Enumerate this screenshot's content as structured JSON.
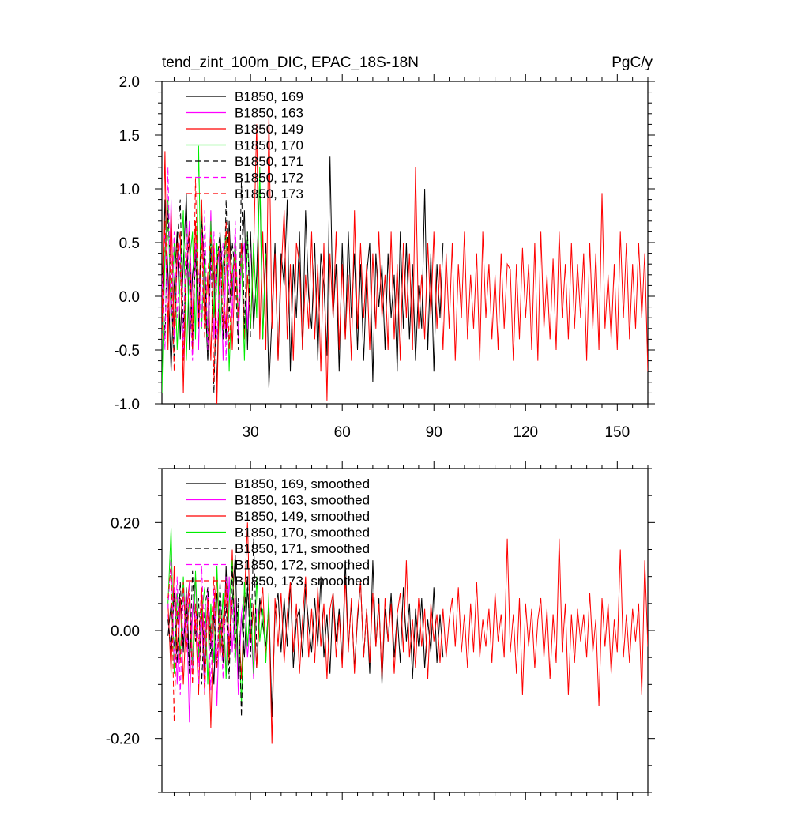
{
  "chart_data": [
    {
      "type": "line",
      "title": "tend_zint_100m_DIC, EPAC_18S-18N",
      "units": "PgC/y",
      "xlim": [
        1,
        160
      ],
      "ylim": [
        -1.0,
        2.0
      ],
      "xticks": [
        30,
        60,
        90,
        120,
        150
      ],
      "yticks": [
        -1.0,
        -0.5,
        0.0,
        0.5,
        1.0,
        1.5,
        2.0
      ],
      "ytick_labels": [
        "-1.0",
        "-0.5",
        "0.0",
        "0.5",
        "1.0",
        "1.5",
        "2.0"
      ],
      "legend_position": "top-left",
      "series": [
        {
          "name": "B1850, 169",
          "color": "#000000",
          "dash": "solid",
          "x_start": 1,
          "values": [
            -0.3,
            0.9,
            0.2,
            -0.7,
            0.1,
            0.6,
            -0.4,
            0.3,
            0.95,
            -0.5,
            0.2,
            0.5,
            -0.3,
            0.8,
            0.1,
            -0.6,
            0.4,
            0.2,
            -0.9,
            0.6,
            0.1,
            -0.4,
            0.7,
            0.0,
            0.5,
            -0.2,
            0.3,
            0.8,
            -0.5,
            0.6,
            -0.3,
            0.2,
            1.1,
            -0.4,
            0.5,
            -0.85,
            -0.2,
            0.5,
            -0.6,
            0.4,
            0.1,
            0.9,
            -0.7,
            0.3,
            -0.2,
            0.6,
            -0.5,
            0.8,
            0.0,
            -0.3,
            0.5,
            -0.6,
            0.4,
            0.1,
            -0.55,
            1.3,
            -0.2,
            0.3,
            -0.7,
            0.5,
            -0.4,
            0.6,
            -0.2,
            0.4,
            -0.5,
            0.3,
            -0.6,
            0.2,
            0.5,
            -0.8,
            0.4,
            -0.1,
            0.3,
            -0.5,
            0.4,
            -0.2,
            0.2,
            -0.7,
            0.6,
            -0.3,
            0.5,
            -0.4,
            0.3,
            -0.6,
            0.1,
            -0.3,
            1.0,
            -0.5,
            0.4,
            -0.7,
            0.3,
            -0.2,
            0.5
          ]
        },
        {
          "name": "B1850, 163",
          "color": "#ff00ff",
          "dash": "solid",
          "x_start": 1,
          "values": [
            0.1,
            0.6,
            -0.3,
            0.9,
            -0.4,
            0.3,
            0.5,
            -0.6,
            0.2,
            0.7,
            -0.2,
            0.4,
            -0.5,
            0.6,
            0.1,
            -0.3,
            0.8,
            -0.4,
            0.2,
            0.5,
            -0.6,
            0.3,
            0.1,
            -0.2,
            0.6,
            -0.4,
            0.3,
            0.5,
            -0.3,
            0.4
          ]
        },
        {
          "name": "B1850, 149",
          "color": "#ff0000",
          "dash": "solid",
          "x_start": 1,
          "values": [
            -0.2,
            1.35,
            -0.5,
            0.8,
            -0.3,
            0.4,
            0.6,
            -0.9,
            0.3,
            0.5,
            -0.4,
            0.7,
            -0.2,
            0.9,
            -0.3,
            0.2,
            -0.6,
            0.5,
            -1.0,
            0.4,
            0.1,
            -0.3,
            0.6,
            -0.5,
            0.3,
            -0.2,
            0.5,
            -0.4,
            0.2,
            -0.3,
            0.4,
            1.6,
            -0.4,
            0.6,
            -0.5,
            1.7,
            -0.3,
            0.4,
            -0.6,
            0.2,
            0.8,
            -0.4,
            0.3,
            -0.6,
            0.5,
            0.3,
            -0.5,
            0.2,
            -0.3,
            0.6,
            -0.4,
            0.3,
            -0.7,
            0.5,
            -0.97,
            0.4,
            -0.2,
            0.6,
            -0.5,
            0.3,
            -0.4,
            0.2,
            -0.6,
            0.8,
            -0.3,
            0.5,
            -0.2,
            0.3,
            -0.5,
            0.4,
            -0.3,
            0.6,
            -0.2,
            0.2,
            -0.5,
            0.6,
            -0.4,
            0.3,
            -0.6,
            0.5,
            -0.2,
            0.4,
            -0.5,
            1.2,
            -0.3,
            0.2,
            -0.4,
            0.5,
            -0.2,
            0.6,
            -0.3,
            0.3,
            -0.5,
            0.4,
            -0.3,
            0.5,
            -0.6,
            0.3,
            -0.2,
            0.6,
            -0.4,
            0.2,
            -0.3,
            0.4,
            -0.6,
            0.6,
            -0.2,
            0.3,
            -0.4,
            0.2,
            -0.5,
            0.4,
            -0.3,
            0.3,
            0.25,
            -0.6,
            0.3,
            -0.4,
            0.45,
            -0.2,
            0.3,
            -0.5,
            0.5,
            -0.6,
            0.6,
            -0.3,
            0.2,
            -0.4,
            0.35,
            -0.5,
            0.6,
            -0.2,
            0.3,
            -0.4,
            0.5,
            -0.3,
            0.3,
            -0.2,
            0.4,
            -0.6,
            0.5,
            -0.3,
            0.4,
            -0.5,
            0.96,
            -0.3,
            0.2,
            -0.4,
            0.3,
            -0.5,
            0.6,
            -0.2,
            0.5,
            -0.4,
            0.3,
            -0.3,
            0.5,
            -0.2,
            0.4,
            -0.7,
            0.3,
            0.92,
            -0.4,
            -0.1
          ]
        },
        {
          "name": "B1850, 170",
          "color": "#00ee00",
          "dash": "solid",
          "x_start": 1,
          "values": [
            -0.9,
            0.4,
            0.9,
            -0.3,
            0.5,
            -0.5,
            0.2,
            0.8,
            -0.6,
            0.3,
            0.6,
            -0.4,
            1.4,
            -0.3,
            0.4,
            -0.5,
            0.7,
            -0.2,
            0.5,
            -0.4,
            0.3,
            0.6,
            -0.7,
            0.2,
            0.5,
            -0.3,
            0.4,
            -0.6,
            0.6,
            -0.3,
            0.5,
            -0.2,
            1.2,
            -0.4,
            0.4
          ]
        },
        {
          "name": "B1850, 171",
          "color": "#000000",
          "dash": "dashed",
          "x_start": 1,
          "values": [
            0.3,
            -0.4,
            0.8,
            0.1,
            -0.6,
            0.5,
            0.9,
            -0.3,
            0.2,
            0.6,
            -0.5,
            0.4,
            -0.2,
            0.7,
            0.3,
            -0.6,
            0.5,
            -0.9,
            0.3,
            0.6,
            -0.4,
            0.9,
            -0.2,
            0.5,
            0.2,
            -0.5,
            1.1,
            -0.3,
            0.6,
            -0.4
          ]
        },
        {
          "name": "B1850, 172",
          "color": "#ff00ff",
          "dash": "dashed",
          "x_start": 1,
          "values": [
            0.2,
            -0.5,
            1.2,
            -0.3,
            0.6,
            -0.2,
            0.4,
            -0.4,
            0.7,
            0.1,
            -0.6,
            0.5,
            0.2,
            -0.3,
            0.8,
            -0.5,
            0.3,
            0.6,
            -0.4,
            0.2,
            0.5,
            -0.6,
            0.4,
            -0.2,
            0.7,
            -0.3,
            0.4
          ]
        },
        {
          "name": "B1850, 173",
          "color": "#ff0000",
          "dash": "dashed",
          "x_start": 1,
          "values": [
            -0.4,
            0.7,
            -0.2,
            0.4,
            -0.7,
            0.5,
            0.3,
            -0.6,
            0.4,
            0.6,
            -0.5,
            1.1,
            -0.3,
            0.5,
            -0.4,
            0.2,
            0.6,
            -0.8,
            0.3,
            0.5,
            -0.3,
            0.7,
            -0.5,
            0.2,
            0.4,
            -0.2
          ]
        }
      ]
    },
    {
      "type": "line",
      "xlim": [
        1,
        160
      ],
      "ylim": [
        -0.3,
        0.3
      ],
      "xticks": [
        30,
        60,
        90,
        120,
        150
      ],
      "yticks": [
        -0.2,
        0.0,
        0.2
      ],
      "ytick_labels": [
        "-0.20",
        "0.00",
        "0.20"
      ],
      "legend_position": "top-left",
      "series": [
        {
          "name": "B1850, 169, smoothed",
          "color": "#000000",
          "dash": "solid",
          "x_start": 3,
          "values": [
            -0.01,
            0.05,
            -0.03,
            0.02,
            0.06,
            -0.04,
            0.08,
            -0.06,
            0.03,
            0.1,
            -0.05,
            0.04,
            -0.08,
            0.06,
            0.0,
            -0.1,
            0.07,
            0.02,
            -0.06,
            0.12,
            -0.04,
            0.05,
            0.14,
            -0.09,
            0.03,
            -0.05,
            0.08,
            -0.02,
            0.04,
            -0.07,
            0.06,
            0.01,
            -0.03,
            0.05,
            -0.16,
            0.03,
            0.07,
            -0.04,
            0.06,
            -0.03,
            0.09,
            -0.07,
            0.02,
            0.04,
            -0.05,
            0.08,
            0.01,
            -0.04,
            0.06,
            -0.03,
            0.1,
            -0.05,
            0.03,
            -0.08,
            0.07,
            -0.02,
            0.04,
            -0.06,
            0.13,
            -0.03,
            0.05,
            -0.07,
            0.02,
            0.09,
            -0.05,
            0.04,
            -0.08,
            0.13,
            -0.03,
            0.06,
            -0.1,
            0.04,
            -0.02,
            0.07,
            -0.05,
            0.03,
            -0.06,
            0.08,
            -0.02,
            0.05,
            -0.09,
            0.04,
            -0.03,
            0.06,
            -0.07,
            0.02,
            -0.04,
            0.08,
            -0.06,
            0.03,
            -0.05
          ]
        },
        {
          "name": "B1850, 163, smoothed",
          "color": "#ff00ff",
          "dash": "solid",
          "x_start": 3,
          "values": [
            0.03,
            -0.05,
            0.08,
            -0.1,
            0.05,
            -0.02,
            0.07,
            -0.17,
            0.04,
            0.09,
            -0.06,
            0.02,
            -0.12,
            0.08,
            -0.03,
            0.06,
            -0.14,
            0.05,
            0.01,
            -0.08,
            0.1,
            -0.04,
            0.06,
            -0.12,
            0.03,
            0.07,
            -0.05,
            0.02,
            -0.09,
            0.04
          ]
        },
        {
          "name": "B1850, 149, smoothed",
          "color": "#ff0000",
          "dash": "solid",
          "x_start": 3,
          "values": [
            0.05,
            -0.08,
            0.12,
            -0.04,
            0.06,
            -0.1,
            0.03,
            0.09,
            -0.06,
            0.02,
            -0.12,
            0.07,
            -0.03,
            0.05,
            -0.18,
            0.04,
            0.1,
            -0.05,
            0.02,
            0.08,
            -0.06,
            0.15,
            -0.04,
            0.03,
            -0.09,
            0.06,
            0.2,
            -0.02,
            0.05,
            -0.07,
            0.03,
            0.08,
            -0.05,
            0.04,
            -0.21,
            0.06,
            -0.03,
            0.07,
            -0.06,
            0.03,
            0.09,
            -0.04,
            0.05,
            -0.08,
            0.02,
            0.1,
            -0.05,
            0.04,
            -0.06,
            0.08,
            -0.03,
            0.05,
            -0.09,
            0.04,
            0.07,
            -0.05,
            0.03,
            -0.07,
            0.1,
            -0.04,
            0.06,
            -0.08,
            0.03,
            0.09,
            -0.05,
            0.04,
            -0.06,
            0.07,
            -0.03,
            0.05,
            -0.09,
            0.06,
            -0.02,
            0.05,
            -0.08,
            0.03,
            0.07,
            -0.04,
            0.13,
            -0.05,
            0.02,
            -0.07,
            0.06,
            -0.03,
            0.04,
            -0.09,
            0.05,
            -0.02,
            0.03,
            -0.06,
            0.04,
            -0.05,
            0.02,
            0.06,
            -0.03,
            0.08,
            -0.04,
            0.03,
            -0.07,
            0.05,
            -0.04,
            0.09,
            -0.05,
            0.02,
            -0.03,
            0.04,
            -0.06,
            0.07,
            -0.02,
            0.03,
            -0.05,
            0.17,
            -0.04,
            0.03,
            -0.08,
            0.06,
            -0.12,
            0.05,
            -0.03,
            0.04,
            -0.07,
            0.02,
            0.06,
            -0.05,
            0.04,
            -0.09,
            0.03,
            -0.06,
            0.17,
            -0.04,
            0.05,
            -0.12,
            0.03,
            -0.06,
            0.04,
            -0.02,
            0.03,
            -0.05,
            0.07,
            -0.04,
            0.02,
            -0.14,
            0.06,
            -0.03,
            0.05,
            -0.08,
            0.02,
            -0.04,
            0.15,
            -0.05,
            0.03,
            -0.06,
            0.04,
            -0.02,
            0.05,
            -0.12,
            0.13,
            -0.03,
            0.09,
            0.0
          ]
        },
        {
          "name": "B1850, 170, smoothed",
          "color": "#00ee00",
          "dash": "solid",
          "x_start": 3,
          "values": [
            0.05,
            0.19,
            -0.08,
            0.07,
            -0.05,
            0.1,
            -0.03,
            0.06,
            -0.07,
            0.11,
            -0.05,
            0.03,
            0.08,
            -0.1,
            0.05,
            -0.06,
            0.12,
            -0.04,
            0.07,
            -0.09,
            0.05,
            0.13,
            -0.06,
            0.04,
            -0.14,
            0.09,
            -0.03,
            0.06,
            -0.08,
            0.1,
            -0.02,
            0.04,
            -0.06,
            0.07
          ]
        },
        {
          "name": "B1850, 171, smoothed",
          "color": "#000000",
          "dash": "dashed",
          "x_start": 3,
          "values": [
            0.02,
            -0.04,
            0.07,
            -0.06,
            0.09,
            -0.03,
            0.05,
            -0.08,
            0.11,
            -0.02,
            0.06,
            -0.1,
            0.04,
            0.08,
            -0.05,
            0.03,
            -0.07,
            0.09,
            -0.04,
            0.05,
            -0.09,
            0.12,
            -0.03,
            0.06,
            -0.16,
            0.04,
            0.1,
            -0.05,
            0.17,
            -0.03
          ]
        },
        {
          "name": "B1850, 172, smoothed",
          "color": "#ff00ff",
          "dash": "dashed",
          "x_start": 3,
          "values": [
            0.04,
            0.14,
            -0.06,
            0.1,
            -0.12,
            0.07,
            -0.04,
            0.09,
            -0.08,
            0.05,
            -0.1,
            0.12,
            -0.03,
            0.06,
            -0.11,
            0.08,
            -0.05,
            0.04,
            -0.09,
            0.1,
            -0.02,
            0.05,
            -0.07
          ]
        },
        {
          "name": "B1850, 173, smoothed",
          "color": "#ff0000",
          "dash": "dashed",
          "x_start": 3,
          "values": [
            0.06,
            0.12,
            -0.17,
            0.04,
            -0.06,
            0.09,
            -0.04,
            0.07,
            -0.1,
            0.05,
            -0.03,
            0.08,
            -0.12,
            0.06,
            -0.02,
            0.1,
            -0.07,
            0.04,
            -0.05,
            0.09,
            -0.03,
            0.06
          ]
        }
      ]
    }
  ]
}
